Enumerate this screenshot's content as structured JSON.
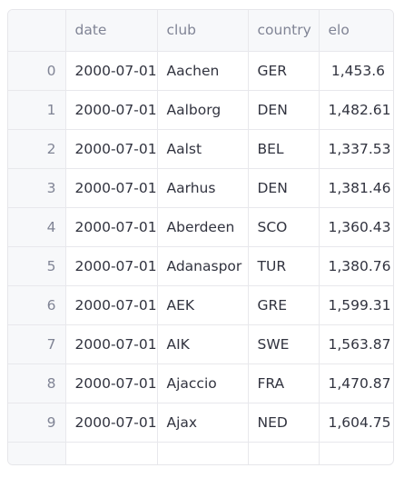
{
  "columns": {
    "index": "",
    "date": "date",
    "club": "club",
    "country": "country",
    "elo": "elo"
  },
  "rows": [
    {
      "index": "0",
      "date": "2000-07-01",
      "club": "Aachen",
      "country": "GER",
      "elo": "1,453.6"
    },
    {
      "index": "1",
      "date": "2000-07-01",
      "club": "Aalborg",
      "country": "DEN",
      "elo": "1,482.61"
    },
    {
      "index": "2",
      "date": "2000-07-01",
      "club": "Aalst",
      "country": "BEL",
      "elo": "1,337.53"
    },
    {
      "index": "3",
      "date": "2000-07-01",
      "club": "Aarhus",
      "country": "DEN",
      "elo": "1,381.46"
    },
    {
      "index": "4",
      "date": "2000-07-01",
      "club": "Aberdeen",
      "country": "SCO",
      "elo": "1,360.43"
    },
    {
      "index": "5",
      "date": "2000-07-01",
      "club": "Adanaspor",
      "country": "TUR",
      "elo": "1,380.76"
    },
    {
      "index": "6",
      "date": "2000-07-01",
      "club": "AEK",
      "country": "GRE",
      "elo": "1,599.31"
    },
    {
      "index": "7",
      "date": "2000-07-01",
      "club": "AIK",
      "country": "SWE",
      "elo": "1,563.87"
    },
    {
      "index": "8",
      "date": "2000-07-01",
      "club": "Ajaccio",
      "country": "FRA",
      "elo": "1,470.87"
    },
    {
      "index": "9",
      "date": "2000-07-01",
      "club": "Ajax",
      "country": "NED",
      "elo": "1,604.75"
    }
  ]
}
